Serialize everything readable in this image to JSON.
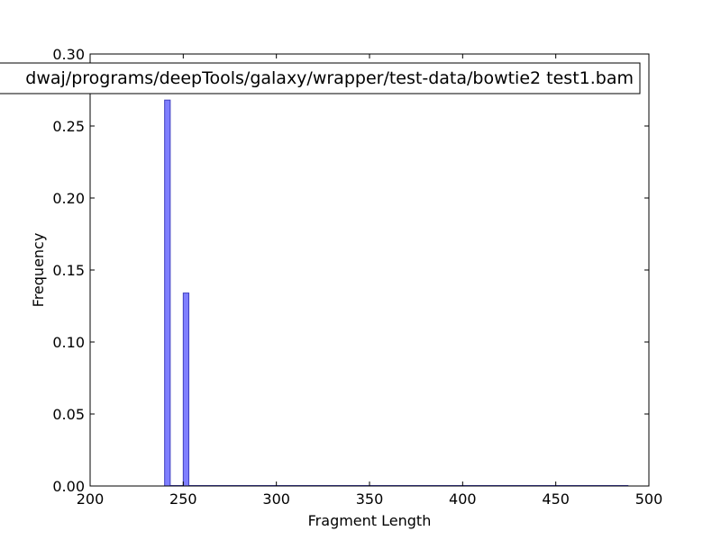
{
  "chart_data": {
    "type": "bar",
    "xlabel": "Fragment Length",
    "ylabel": "Frequency",
    "xlim": [
      200,
      500
    ],
    "ylim": [
      0,
      0.3
    ],
    "xticks": [
      "200",
      "250",
      "300",
      "350",
      "400",
      "450",
      "500"
    ],
    "yticks": [
      "0.00",
      "0.05",
      "0.10",
      "0.15",
      "0.20",
      "0.25",
      "0.30"
    ],
    "grid": false,
    "legend_position": "top",
    "series": [
      {
        "name": "dwaj/programs/deepTools/galaxy/wrapper/test-data/bowtie2 test1.bam",
        "bars": [
          {
            "x0": 240,
            "x1": 243,
            "value": 0.268
          },
          {
            "x0": 250,
            "x1": 253,
            "value": 0.134
          }
        ],
        "baseline_end_x": 489
      }
    ]
  },
  "colors": {
    "bar_fill": "#7f7fff",
    "bar_edge": "#3f3fbf",
    "axes": "#000000"
  }
}
